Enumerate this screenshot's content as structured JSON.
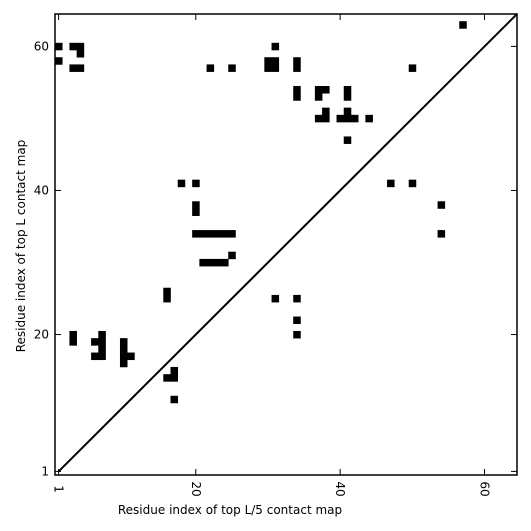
{
  "chart_data": {
    "type": "heatmap",
    "title": "",
    "xlabel": "Residue index of top L/5 contact map",
    "ylabel": "Residue index of top L contact map",
    "xlim": [
      0.5,
      64.5
    ],
    "ylim": [
      0.5,
      64.5
    ],
    "xticks": [
      1,
      20,
      40,
      60
    ],
    "yticks": [
      1,
      20,
      40,
      60
    ],
    "xtick_rotation": -90,
    "diagonal": true,
    "grid": false,
    "legend": "none",
    "cell_color": "#000000",
    "background_color": "#ffffff",
    "cells": [
      [
        1,
        60
      ],
      [
        1,
        58
      ],
      [
        3,
        60
      ],
      [
        4,
        60
      ],
      [
        4,
        59
      ],
      [
        3,
        57
      ],
      [
        4,
        57
      ],
      [
        3,
        20
      ],
      [
        3,
        19
      ],
      [
        6,
        19
      ],
      [
        6,
        17
      ],
      [
        7,
        20
      ],
      [
        7,
        19
      ],
      [
        7,
        18
      ],
      [
        7,
        17
      ],
      [
        10,
        19
      ],
      [
        10,
        18
      ],
      [
        10,
        17
      ],
      [
        10,
        16
      ],
      [
        11,
        17
      ],
      [
        16,
        26
      ],
      [
        16,
        25
      ],
      [
        16,
        14
      ],
      [
        17,
        15
      ],
      [
        17,
        14
      ],
      [
        17,
        11
      ],
      [
        18,
        41
      ],
      [
        20,
        41
      ],
      [
        20,
        38
      ],
      [
        20,
        37
      ],
      [
        20,
        34
      ],
      [
        21,
        34
      ],
      [
        22,
        34
      ],
      [
        23,
        34
      ],
      [
        24,
        34
      ],
      [
        21,
        30
      ],
      [
        22,
        30
      ],
      [
        23,
        30
      ],
      [
        24,
        30
      ],
      [
        22,
        57
      ],
      [
        25,
        57
      ],
      [
        25,
        34
      ],
      [
        25,
        31
      ],
      [
        30,
        58
      ],
      [
        31,
        58
      ],
      [
        30,
        57
      ],
      [
        31,
        57
      ],
      [
        31,
        60
      ],
      [
        31,
        25
      ],
      [
        34,
        25
      ],
      [
        34,
        22
      ],
      [
        34,
        20
      ],
      [
        34,
        58
      ],
      [
        34,
        57
      ],
      [
        34,
        54
      ],
      [
        34,
        53
      ],
      [
        37,
        54
      ],
      [
        38,
        54
      ],
      [
        37,
        53
      ],
      [
        38,
        51
      ],
      [
        37,
        50
      ],
      [
        38,
        50
      ],
      [
        40,
        50
      ],
      [
        41,
        51
      ],
      [
        41,
        50
      ],
      [
        42,
        50
      ],
      [
        41,
        54
      ],
      [
        41,
        53
      ],
      [
        41,
        47
      ],
      [
        44,
        50
      ],
      [
        47,
        41
      ],
      [
        50,
        41
      ],
      [
        50,
        57
      ],
      [
        54,
        38
      ],
      [
        54,
        34
      ],
      [
        57,
        63
      ]
    ]
  }
}
